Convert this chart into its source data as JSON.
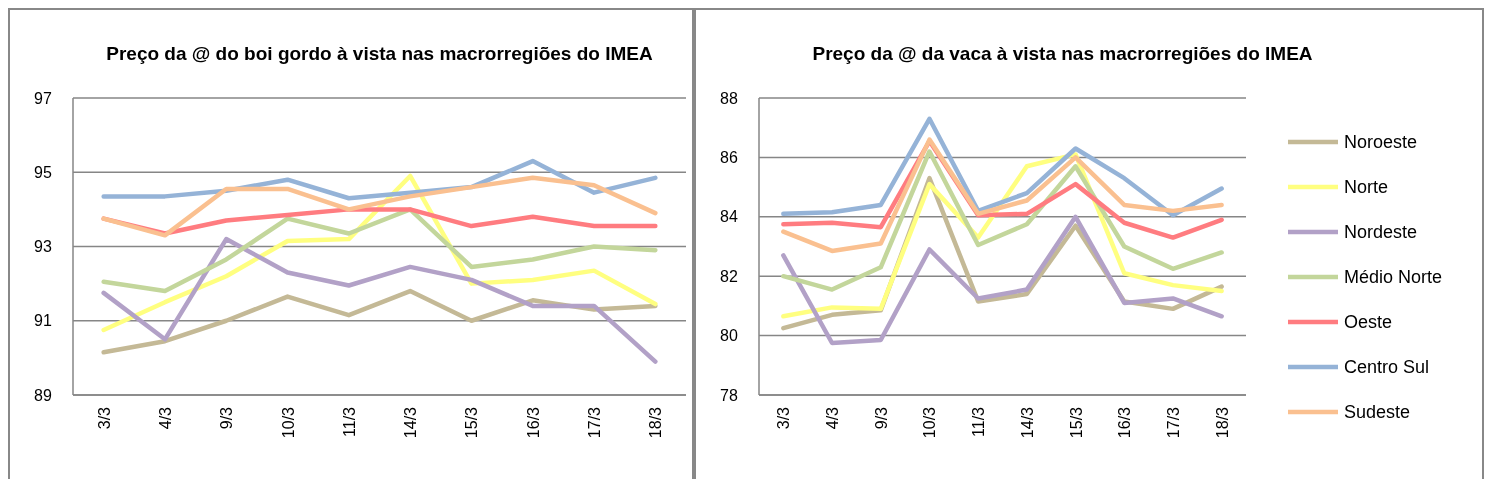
{
  "chart_data": [
    {
      "type": "line",
      "title": "Preço da @ do boi gordo à vista nas macrorregiões do IMEA",
      "categories": [
        "3/3",
        "4/3",
        "9/3",
        "10/3",
        "11/3",
        "14/3",
        "15/3",
        "16/3",
        "17/3",
        "18/3"
      ],
      "ylim": [
        89,
        97
      ],
      "yticks": [
        89,
        91,
        93,
        95,
        97
      ],
      "grid": "y",
      "legend": false,
      "marker": "none",
      "series": [
        {
          "color": "#c4b996",
          "values": [
            90.15,
            90.45,
            91.0,
            91.65,
            91.15,
            91.8,
            91.0,
            91.55,
            91.3,
            91.4
          ]
        },
        {
          "color": "#ffff80",
          "values": [
            90.75,
            91.5,
            92.2,
            93.15,
            93.2,
            94.9,
            92.0,
            92.1,
            92.35,
            91.45
          ]
        },
        {
          "color": "#b2a1c7",
          "values": [
            91.75,
            90.5,
            93.2,
            92.3,
            91.95,
            92.45,
            92.1,
            91.4,
            91.4,
            89.9
          ]
        },
        {
          "color": "#c3d69b",
          "values": [
            92.05,
            91.8,
            92.65,
            93.75,
            93.35,
            94.0,
            92.45,
            92.65,
            93.0,
            92.9
          ]
        },
        {
          "color": "#ff7c80",
          "values": [
            93.75,
            93.35,
            93.7,
            93.85,
            94.0,
            94.0,
            93.55,
            93.8,
            93.55,
            93.55
          ]
        },
        {
          "color": "#95b3d7",
          "values": [
            94.35,
            94.35,
            94.5,
            94.8,
            94.3,
            94.45,
            94.6,
            95.3,
            94.45,
            94.85
          ]
        },
        {
          "color": "#fac090",
          "values": [
            93.75,
            93.3,
            94.55,
            94.55,
            94.0,
            94.35,
            94.6,
            94.85,
            94.65,
            93.9
          ]
        }
      ]
    },
    {
      "type": "line",
      "title": "Preço da @ da vaca à vista nas macrorregiões do IMEA",
      "categories": [
        "3/3",
        "4/3",
        "9/3",
        "10/3",
        "11/3",
        "14/3",
        "15/3",
        "16/3",
        "17/3",
        "18/3"
      ],
      "ylim": [
        78,
        88
      ],
      "yticks": [
        78,
        80,
        82,
        84,
        86,
        88
      ],
      "grid": "y",
      "legend": "right",
      "marker": "none",
      "series": [
        {
          "name": "Noroeste",
          "color": "#c4b996",
          "values": [
            80.25,
            80.7,
            80.85,
            85.3,
            81.15,
            81.4,
            83.7,
            81.15,
            80.9,
            81.65
          ]
        },
        {
          "name": "Norte",
          "color": "#ffff80",
          "values": [
            80.65,
            80.95,
            80.9,
            85.1,
            83.3,
            85.7,
            86.1,
            82.1,
            81.7,
            81.5
          ]
        },
        {
          "name": "Nordeste",
          "color": "#b2a1c7",
          "values": [
            82.7,
            79.75,
            79.85,
            82.9,
            81.25,
            81.55,
            84.0,
            81.1,
            81.25,
            80.65
          ]
        },
        {
          "name": "Médio Norte",
          "color": "#c3d69b",
          "values": [
            82.0,
            81.55,
            82.3,
            86.2,
            83.05,
            83.75,
            85.7,
            83.0,
            82.25,
            82.8
          ]
        },
        {
          "name": "Oeste",
          "color": "#ff7c80",
          "values": [
            83.75,
            83.8,
            83.65,
            86.55,
            84.05,
            84.1,
            85.1,
            83.8,
            83.3,
            83.9
          ]
        },
        {
          "name": "Centro Sul",
          "color": "#95b3d7",
          "values": [
            84.1,
            84.15,
            84.4,
            87.3,
            84.2,
            84.8,
            86.3,
            85.3,
            84.05,
            84.95
          ]
        },
        {
          "name": "Sudeste",
          "color": "#fac090",
          "values": [
            83.5,
            82.85,
            83.1,
            86.6,
            84.1,
            84.55,
            86.0,
            84.4,
            84.2,
            84.4
          ]
        }
      ]
    }
  ]
}
